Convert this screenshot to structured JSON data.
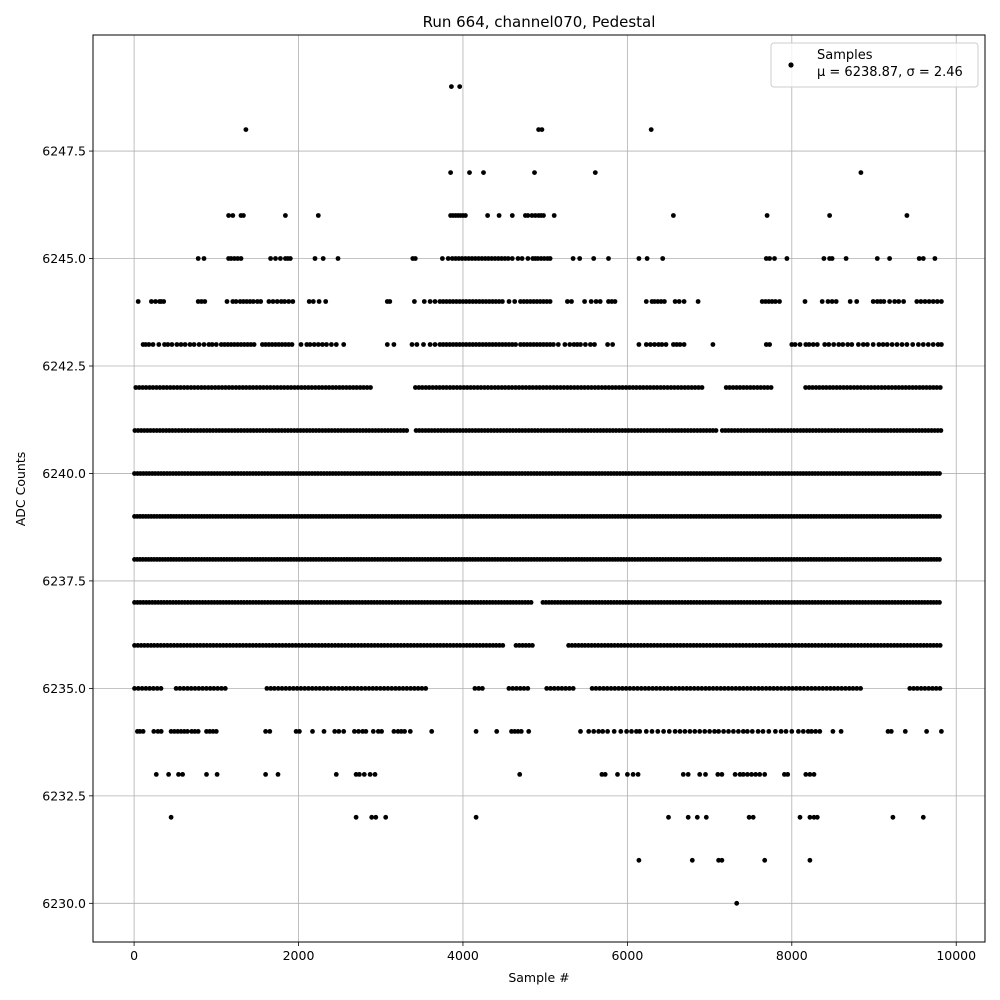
{
  "chart_data": {
    "type": "scatter",
    "title": "Run 664, channel070, Pedestal",
    "xlabel": "Sample #",
    "ylabel": "ADC Counts",
    "xlim": [
      -500,
      10350
    ],
    "ylim": [
      6229.1,
      6250.2
    ],
    "xticks": [
      0,
      2000,
      4000,
      6000,
      8000,
      10000
    ],
    "yticks": [
      6230.0,
      6232.5,
      6235.0,
      6237.5,
      6240.0,
      6242.5,
      6245.0,
      6247.5
    ],
    "xtick_labels": [
      "0",
      "2000",
      "4000",
      "6000",
      "8000",
      "10000"
    ],
    "ytick_labels": [
      "6230.0",
      "6232.5",
      "6235.0",
      "6237.5",
      "6240.0",
      "6242.5",
      "6245.0",
      "6247.5"
    ],
    "grid": true,
    "legend_position": "top-right",
    "marker_color": "#000000",
    "series": [
      {
        "name": "Samples",
        "stats_label": "μ = 6238.87, σ = 2.46",
        "levels": [
          {
            "y": 6249,
            "x": [
              3860,
              3960
            ]
          },
          {
            "y": 6248,
            "x": [
              1360,
              4920,
              4960,
              6290
            ]
          },
          {
            "y": 6247,
            "x": [
              3850,
              4080,
              4250,
              4870,
              5610,
              8840
            ]
          },
          {
            "y": 6246,
            "x": [
              1150,
              1200,
              1300,
              1330,
              1840,
              2240,
              3850,
              3880,
              3910,
              3940,
              3970,
              4000,
              4030,
              4300,
              4440,
              4600,
              4760,
              4790,
              4840,
              4880,
              4920,
              4950,
              4980,
              5110,
              6560,
              7700,
              8460,
              9400
            ]
          },
          {
            "y": 6245,
            "x": [
              780,
              850,
              1150,
              1180,
              1220,
              1260,
              1300,
              1660,
              1720,
              1780,
              1840,
              1870,
              1900,
              2200,
              2300,
              2480,
              3390,
              3420,
              3750,
              3820,
              3870,
              3910,
              3950,
              3990,
              4030,
              4070,
              4110,
              4150,
              4190,
              4230,
              4270,
              4310,
              4350,
              4390,
              4430,
              4470,
              4510,
              4550,
              4600,
              4670,
              4720,
              4790,
              4850,
              4880,
              4910,
              4950,
              4990,
              5030,
              5060,
              5340,
              5420,
              5590,
              5770,
              6140,
              6240,
              6430,
              7690,
              7730,
              7790,
              7940,
              8390,
              8460,
              8490,
              8660,
              9040,
              9190,
              9550,
              9600,
              9740
            ]
          },
          {
            "y": 6244,
            "x": [
              50,
              210,
              260,
              310,
              330,
              360,
              780,
              820,
              860,
              1130,
              1200,
              1240,
              1290,
              1330,
              1370,
              1410,
              1450,
              1500,
              1540,
              1640,
              1690,
              1740,
              1790,
              1830,
              1880,
              1930,
              2130,
              2180,
              2250,
              2330,
              3080,
              3110,
              3410,
              3530,
              3600,
              3660,
              3720,
              3760,
              3800,
              3840,
              3880,
              3920,
              3960,
              4000,
              4040,
              4080,
              4120,
              4160,
              4200,
              4240,
              4280,
              4320,
              4360,
              4400,
              4440,
              4480,
              4560,
              4630,
              4700,
              4740,
              4780,
              4820,
              4860,
              4900,
              4940,
              4980,
              5020,
              5060,
              5270,
              5320,
              5480,
              5560,
              5620,
              5670,
              5770,
              5810,
              5850,
              6230,
              6300,
              6330,
              6370,
              6410,
              6450,
              6580,
              6630,
              6690,
              6860,
              7640,
              7680,
              7720,
              7760,
              7800,
              7850,
              8160,
              8370,
              8440,
              8490,
              8540,
              8710,
              8790,
              8990,
              9040,
              9080,
              9120,
              9190,
              9250,
              9300,
              9360,
              9520,
              9570,
              9620,
              9670,
              9720,
              9770,
              9820
            ]
          },
          {
            "y": 6243,
            "x": [
              110,
              140,
              180,
              230,
              300,
              370,
              410,
              460,
              520,
              570,
              620,
              680,
              730,
              790,
              850,
              910,
              950,
              1000,
              1060,
              1100,
              1140,
              1180,
              1220,
              1260,
              1300,
              1340,
              1380,
              1420,
              1460,
              1560,
              1600,
              1640,
              1680,
              1720,
              1760,
              1800,
              1840,
              1880,
              1920,
              2030,
              2100,
              2140,
              2190,
              2240,
              2290,
              2340,
              2400,
              2460,
              2550,
              3080,
              3160,
              3380,
              3440,
              3520,
              3600,
              3660,
              3720,
              3760,
              3800,
              3840,
              3880,
              3920,
              3960,
              4000,
              4040,
              4080,
              4120,
              4160,
              4200,
              4240,
              4280,
              4320,
              4360,
              4400,
              4440,
              4480,
              4520,
              4560,
              4600,
              4640,
              4700,
              4740,
              4780,
              4820,
              4860,
              4900,
              4940,
              4980,
              5020,
              5060,
              5100,
              5160,
              5240,
              5300,
              5350,
              5390,
              5430,
              5490,
              5550,
              5600,
              5760,
              5820,
              6140,
              6230,
              6280,
              6330,
              6380,
              6420,
              6470,
              6560,
              6600,
              6640,
              6690,
              7040,
              7690,
              7730,
              8000,
              8040,
              8100,
              8170,
              8210,
              8260,
              8310,
              8400,
              8450,
              8510,
              8570,
              8620,
              8680,
              8730,
              8810,
              8870,
              8920,
              8990,
              9060,
              9110,
              9160,
              9220,
              9280,
              9340,
              9400,
              9470,
              9540,
              9600,
              9660,
              9720,
              9780,
              9820
            ]
          }
        ],
        "bands": [
          {
            "y": 6242,
            "x0": 20,
            "x1": 9830,
            "step": 42,
            "gaps": [
              [
                2880,
                3390
              ],
              [
                6920,
                7190
              ],
              [
                7780,
                8160
              ]
            ]
          },
          {
            "y": 6241,
            "x0": 10,
            "x1": 9830,
            "step": 38,
            "gaps": [
              [
                3350,
                3400
              ],
              [
                7080,
                7140
              ]
            ]
          },
          {
            "y": 6240,
            "x0": 5,
            "x1": 9830,
            "step": 36,
            "gaps": []
          },
          {
            "y": 6239,
            "x0": 5,
            "x1": 9830,
            "step": 34,
            "gaps": []
          },
          {
            "y": 6238,
            "x0": 5,
            "x1": 9830,
            "step": 34,
            "gaps": []
          },
          {
            "y": 6237,
            "x0": 5,
            "x1": 9830,
            "step": 36,
            "gaps": [
              [
                4850,
                4970
              ]
            ]
          },
          {
            "y": 6236,
            "x0": 5,
            "x1": 9830,
            "step": 40,
            "gaps": [
              [
                4520,
                4640
              ],
              [
                4850,
                5250
              ]
            ]
          },
          {
            "y": 6235,
            "x0": 5,
            "x1": 9830,
            "step": 46,
            "gaps": [
              [
                360,
                480
              ],
              [
                1150,
                1580
              ],
              [
                3560,
                4120
              ],
              [
                4240,
                4520
              ],
              [
                4800,
                5010
              ],
              [
                5380,
                5560
              ],
              [
                8880,
                9400
              ]
            ]
          }
        ],
        "sparse_levels": [
          {
            "y": 6234,
            "x": [
              40,
              70,
              110,
              240,
              290,
              330,
              450,
              490,
              530,
              570,
              610,
              650,
              700,
              740,
              780,
              880,
              920,
              960,
              1000,
              1600,
              1650,
              1970,
              2010,
              2170,
              2310,
              2440,
              2490,
              2550,
              2680,
              2730,
              2780,
              2820,
              2910,
              2970,
              3010,
              3160,
              3210,
              3250,
              3290,
              3360,
              3620,
              4160,
              4410,
              4590,
              4630,
              4670,
              4710,
              4800,
              5430,
              5530,
              5590,
              5650,
              5700,
              5760,
              5840,
              5920,
              5990,
              6050,
              6110,
              6150,
              6230,
              6300,
              6370,
              6440,
              6510,
              6580,
              6640,
              6700,
              6760,
              6820,
              6880,
              6940,
              7000,
              7060,
              7110,
              7170,
              7230,
              7290,
              7350,
              7410,
              7460,
              7520,
              7590,
              7650,
              7720,
              7800,
              7870,
              7930,
              8000,
              8080,
              8140,
              8200,
              8240,
              8290,
              8340,
              8500,
              8600,
              9170,
              9210,
              9380,
              9640,
              9820
            ]
          },
          {
            "y": 6233,
            "x": [
              270,
              420,
              540,
              590,
              880,
              1010,
              1600,
              1750,
              2460,
              2700,
              2740,
              2800,
              2870,
              2930,
              4690,
              5690,
              5730,
              5880,
              6000,
              6070,
              6130,
              6680,
              6740,
              6880,
              6950,
              7100,
              7150,
              7310,
              7370,
              7410,
              7460,
              7510,
              7560,
              7610,
              7670,
              7910,
              7950,
              8170,
              8220,
              8270
            ]
          },
          {
            "y": 6232,
            "x": [
              450,
              2700,
              2890,
              2940,
              3060,
              4160,
              6500,
              6740,
              6850,
              6960,
              7480,
              7530,
              8100,
              8220,
              8270,
              8310,
              9230,
              9600
            ]
          },
          {
            "y": 6231,
            "x": [
              6140,
              6790,
              7110,
              7150,
              7670,
              8220
            ]
          },
          {
            "y": 6230,
            "x": [
              7330
            ]
          }
        ]
      }
    ]
  }
}
